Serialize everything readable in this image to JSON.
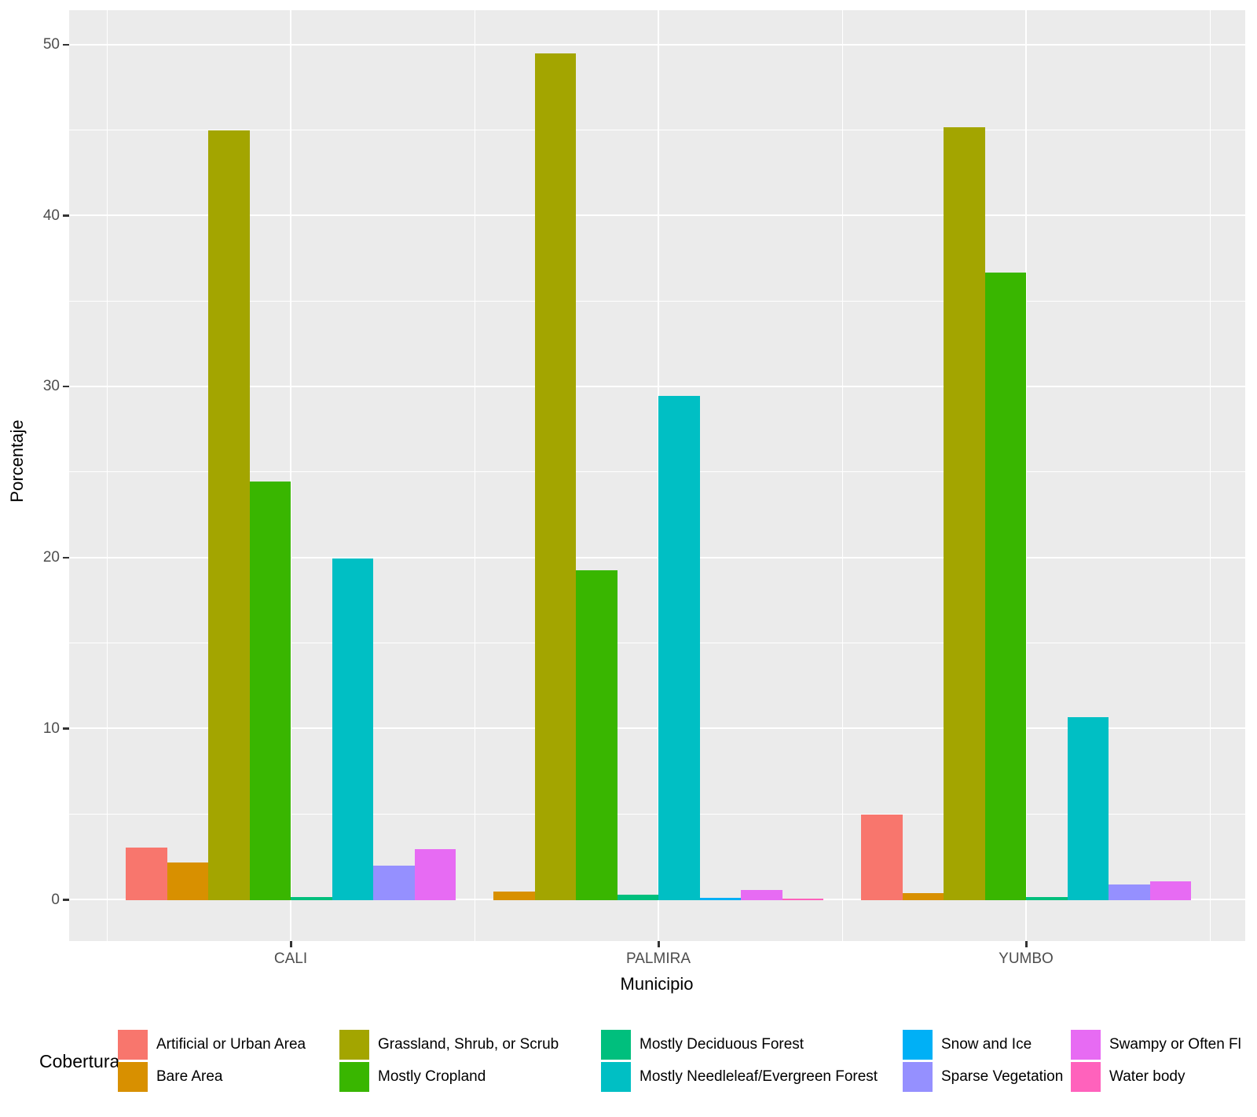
{
  "chart_data": {
    "type": "bar",
    "title": "",
    "xlabel": "Municipio",
    "ylabel": "Porcentaje",
    "legend_title": "Cobertura",
    "legend_position": "bottom",
    "categories": [
      "CALI",
      "PALMIRA",
      "YUMBO"
    ],
    "yticks": [
      0,
      10,
      20,
      30,
      40,
      50
    ],
    "ylim": [
      0,
      50
    ],
    "grid": "major-and-minor-white-on-gray",
    "series": [
      {
        "name": "Artificial or Urban Area",
        "color": "#F8766D",
        "values": [
          3.1,
          null,
          5.0
        ]
      },
      {
        "name": "Bare Area",
        "color": "#D89000",
        "values": [
          2.2,
          0.5,
          0.4
        ]
      },
      {
        "name": "Grassland, Shrub, or Scrub",
        "color": "#A3A500",
        "values": [
          45.0,
          49.5,
          45.2
        ]
      },
      {
        "name": "Mostly Cropland",
        "color": "#39B600",
        "values": [
          24.5,
          19.3,
          36.7
        ]
      },
      {
        "name": "Mostly Deciduous Forest",
        "color": "#00BF7D",
        "values": [
          0.2,
          0.3,
          0.2
        ]
      },
      {
        "name": "Mostly Needleleaf/Evergreen Forest",
        "color": "#00BFC4",
        "values": [
          20.0,
          29.5,
          10.7
        ]
      },
      {
        "name": "Snow and Ice",
        "color": "#00B0F6",
        "values": [
          null,
          0.15,
          null
        ]
      },
      {
        "name": "Sparse Vegetation",
        "color": "#9590FF",
        "values": [
          2.0,
          null,
          0.9
        ]
      },
      {
        "name": "Swampy or Often Fl",
        "color": "#E76BF3",
        "values": [
          3.0,
          0.6,
          1.1
        ]
      },
      {
        "name": "Water body",
        "color": "#FF62BC",
        "values": [
          null,
          0.1,
          null
        ]
      }
    ],
    "colors": {
      "panel_background": "#EBEBEB",
      "gridline": "#FFFFFF",
      "tick_text": "#4D4D4D",
      "axis_title_text": "#000000"
    }
  }
}
